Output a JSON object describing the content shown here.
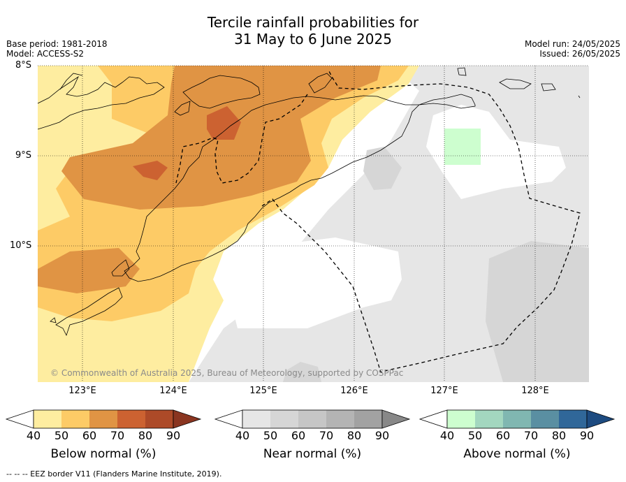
{
  "title_line1": "Tercile rainfall probabilities for",
  "title_line2": "31 May to 6 June 2025",
  "meta_left": [
    "Base period: 1981-2018",
    "Model: ACCESS-S2"
  ],
  "meta_right": [
    "Model run: 24/05/2025",
    "Issued: 26/05/2025"
  ],
  "map": {
    "lat_labels": [
      "8°S",
      "9°S",
      "10°S"
    ],
    "lon_labels": [
      "123°E",
      "124°E",
      "125°E",
      "126°E",
      "127°E",
      "128°E"
    ],
    "copyright": "© Commonwealth of Australia 2025, Bureau of Meteorology, supported by COSPPac"
  },
  "colorbars": [
    {
      "title": "Below normal (%)",
      "ticks": [
        "40",
        "50",
        "60",
        "70",
        "80",
        "90"
      ],
      "colors": [
        "#ffffff",
        "#feeda0",
        "#fdcb66",
        "#e09444",
        "#cc6231",
        "#ad4a28",
        "#8a3520"
      ]
    },
    {
      "title": "Near normal (%)",
      "ticks": [
        "40",
        "50",
        "60",
        "70",
        "80",
        "90"
      ],
      "colors": [
        "#ffffff",
        "#e6e6e6",
        "#d6d6d6",
        "#c6c6c6",
        "#b4b4b4",
        "#a2a2a2",
        "#888888"
      ]
    },
    {
      "title": "Above normal (%)",
      "ticks": [
        "40",
        "50",
        "60",
        "70",
        "80",
        "90"
      ],
      "colors": [
        "#ffffff",
        "#cdfecf",
        "#a3d7bf",
        "#80b7b1",
        "#5a8fa2",
        "#306799",
        "#1d4b80"
      ]
    }
  ],
  "footer": "--  --  -- EEZ border V11 (Flanders Marine Institute, 2019)."
}
